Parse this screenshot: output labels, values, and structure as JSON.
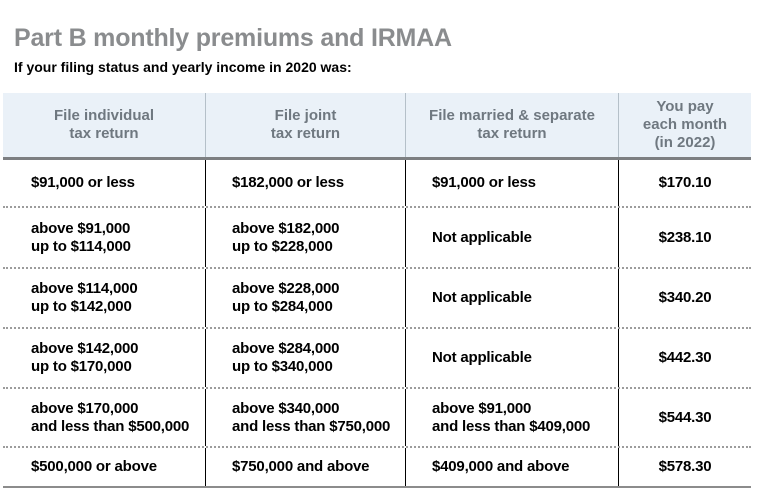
{
  "page": {
    "title": "Part B monthly premiums and IRMAA",
    "subtitle": "If your filing status and yearly income in 2020 was:"
  },
  "colors": {
    "title_text": "#8a8c8e",
    "header_background": "#eaf1f8",
    "header_text": "#6f7880",
    "header_divider": "#b5c0c9",
    "header_bottom_border": "#7d7f82",
    "body_text": "#000000",
    "body_divider": "#000000",
    "row_separator_dotted": "#9c9c9c",
    "table_bottom_border": "#8c8c8c"
  },
  "table": {
    "headers": [
      {
        "lines": [
          "File individual",
          "tax return"
        ]
      },
      {
        "lines": [
          "File joint",
          "tax return"
        ]
      },
      {
        "lines": [
          "File married & separate",
          "tax return"
        ]
      },
      {
        "lines": [
          "You pay",
          "each month",
          "(in 2022)"
        ]
      }
    ],
    "rows": [
      {
        "individual": [
          "$91,000 or less"
        ],
        "joint": [
          "$182,000 or less"
        ],
        "married_separate": [
          "$91,000 or less"
        ],
        "you_pay": "$170.10"
      },
      {
        "individual": [
          "above $91,000",
          "up to $114,000"
        ],
        "joint": [
          "above $182,000",
          "up to $228,000"
        ],
        "married_separate": [
          "Not applicable"
        ],
        "you_pay": "$238.10"
      },
      {
        "individual": [
          "above $114,000",
          "up to $142,000"
        ],
        "joint": [
          "above $228,000",
          "up to $284,000"
        ],
        "married_separate": [
          "Not applicable"
        ],
        "you_pay": "$340.20"
      },
      {
        "individual": [
          "above $142,000",
          "up to $170,000"
        ],
        "joint": [
          "above $284,000",
          "up to $340,000"
        ],
        "married_separate": [
          "Not applicable"
        ],
        "you_pay": "$442.30"
      },
      {
        "individual": [
          "above $170,000",
          "and less than $500,000"
        ],
        "joint": [
          "above $340,000",
          "and less than $750,000"
        ],
        "married_separate": [
          "above $91,000",
          "and less than $409,000"
        ],
        "you_pay": "$544.30"
      },
      {
        "individual": [
          "$500,000 or above"
        ],
        "joint": [
          "$750,000 and above"
        ],
        "married_separate": [
          "$409,000 and above"
        ],
        "you_pay": "$578.30"
      }
    ]
  }
}
